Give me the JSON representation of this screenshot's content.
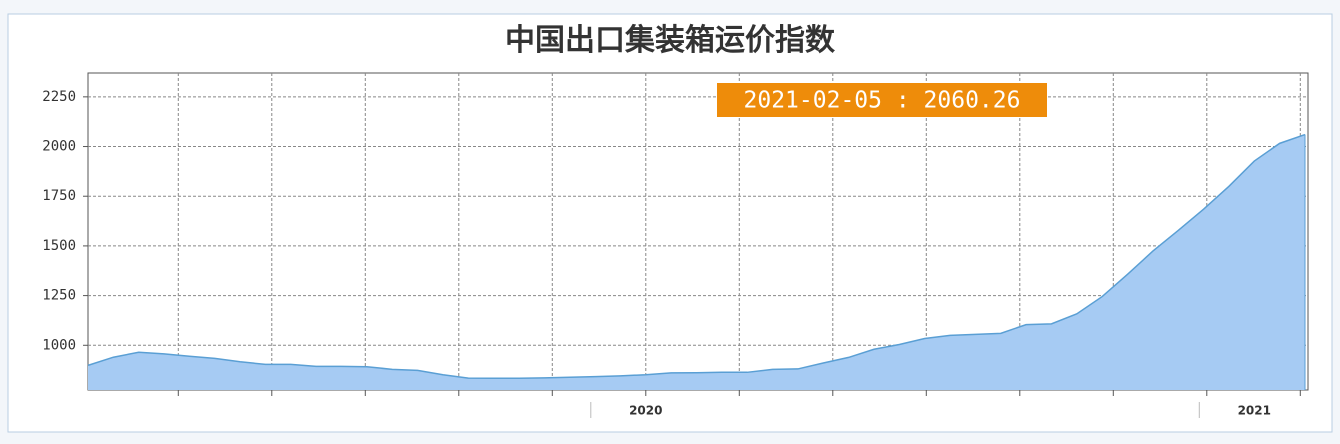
{
  "chart_data": {
    "type": "area",
    "title": "中国出口集装箱运价指数",
    "annotation": "2021-02-05 : 2060.26",
    "categories": [
      null,
      null,
      null,
      null,
      null,
      null,
      null,
      null,
      null,
      null,
      null,
      null,
      null,
      null,
      null,
      null,
      null,
      null,
      null,
      null,
      null,
      null,
      "2020",
      null,
      null,
      null,
      null,
      null,
      null,
      null,
      null,
      null,
      null,
      null,
      null,
      null,
      null,
      null,
      null,
      null,
      null,
      null,
      null,
      null,
      null,
      null,
      "2021",
      null,
      null
    ],
    "values": [
      899,
      940,
      965,
      957,
      945,
      934,
      917,
      904,
      904,
      894,
      894,
      892,
      879,
      874,
      852,
      835,
      834,
      834,
      836,
      839,
      842,
      846,
      852,
      861,
      862,
      864,
      864,
      879,
      881,
      911,
      939,
      980,
      1004,
      1034,
      1050,
      1055,
      1060,
      1104,
      1108,
      1158,
      1245,
      1357,
      1474,
      1578,
      1685,
      1800,
      1927,
      2016,
      2060.26
    ],
    "color": "#a6cbf3",
    "line_color": "#5a9fd4",
    "ylim": [
      775,
      2370
    ],
    "yticks": [
      1000,
      1250,
      1500,
      1750,
      2000,
      2250
    ],
    "grid": true
  }
}
